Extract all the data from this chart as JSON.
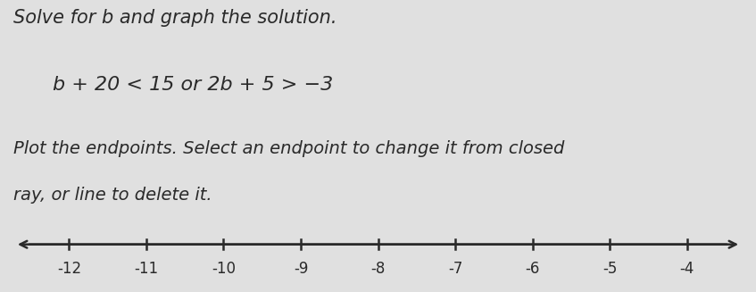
{
  "title": "Solve for b and graph the solution.",
  "equation_text": "b + 20 < 15 or 2b + 5 > −3",
  "instruction_line1": "Plot the endpoints. Select an endpoint to change it from closed",
  "instruction_line2": "ray, or line to delete it.",
  "x_min": -12.7,
  "x_max": -3.3,
  "tick_positions": [
    -12,
    -11,
    -10,
    -9,
    -8,
    -7,
    -6,
    -5,
    -4
  ],
  "tick_labels": [
    "-12",
    "-11",
    "-10",
    "-9",
    "-8",
    "-7",
    "-6",
    "-5",
    "-4"
  ],
  "background_color": "#e0e0e0",
  "text_color": "#2a2a2a",
  "axis_color": "#2a2a2a",
  "title_fontsize": 15,
  "eq_fontsize": 16,
  "instr_fontsize": 14,
  "tick_fontsize": 12
}
